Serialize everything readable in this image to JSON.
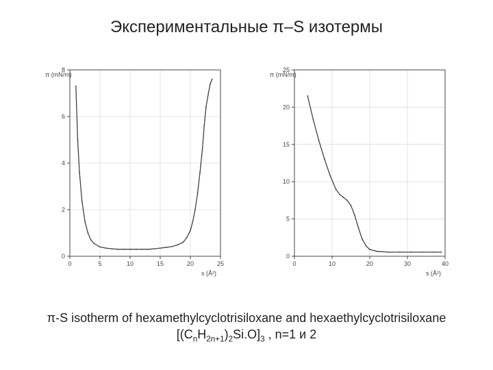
{
  "title": "Экспериментальные π–S изотермы",
  "caption_line1": "π-S isotherm of hexamethylcyclotrisiloxane and hexaethylcyclotrisiloxane",
  "caption_line2_prefix": "[(C",
  "caption_sub_n": "n",
  "caption_H": "H",
  "caption_sub_2n1": "2n+1",
  "caption_close1": ")",
  "caption_sub_2": "2",
  "caption_close2": "Si.O]",
  "caption_sub_3": "3",
  "caption_tail": " , n=1 и 2",
  "chart_left": {
    "type": "line",
    "background_color": "#ffffff",
    "grid_color": "#d0d0d0",
    "axis_color": "#444444",
    "line_color": "#404040",
    "line_width": 1.3,
    "xlim": [
      0,
      25
    ],
    "ylim": [
      0,
      8
    ],
    "xticks": [
      0,
      5,
      10,
      15,
      20,
      25
    ],
    "yticks": [
      0,
      2,
      4,
      6,
      8
    ],
    "xlabel": "s (Å²)",
    "ylabel": "π (mN/m)",
    "label_fontsize": 9,
    "tick_fontsize": 9,
    "data_x": [
      1.0,
      1.3,
      1.6,
      2.0,
      2.5,
      3.0,
      3.5,
      4.0,
      5.0,
      6.0,
      7.0,
      8.0,
      9.0,
      10.0,
      11.0,
      12.0,
      13.0,
      14.0,
      15.0,
      16.0,
      17.0,
      18.0,
      18.8,
      19.4,
      20.0,
      20.4,
      20.8,
      21.2,
      21.6,
      22.0,
      22.3,
      22.6,
      23.0,
      23.3,
      23.6
    ],
    "data_y": [
      7.3,
      5.0,
      3.6,
      2.4,
      1.5,
      1.0,
      0.7,
      0.55,
      0.4,
      0.35,
      0.32,
      0.3,
      0.3,
      0.3,
      0.3,
      0.3,
      0.3,
      0.32,
      0.35,
      0.38,
      0.42,
      0.5,
      0.6,
      0.8,
      1.1,
      1.5,
      2.0,
      2.7,
      3.6,
      4.6,
      5.6,
      6.4,
      7.0,
      7.4,
      7.6
    ]
  },
  "chart_right": {
    "type": "line",
    "background_color": "#ffffff",
    "grid_color": "#d0d0d0",
    "axis_color": "#444444",
    "line_color": "#404040",
    "line_width": 1.3,
    "xlim": [
      0,
      40
    ],
    "ylim": [
      0,
      25
    ],
    "xticks": [
      0,
      10,
      20,
      30,
      40
    ],
    "yticks": [
      0,
      5,
      10,
      15,
      20,
      25
    ],
    "xlabel": "s (Å²)",
    "ylabel": "π (mN/m)",
    "label_fontsize": 9,
    "tick_fontsize": 9,
    "data_x": [
      3.5,
      5.0,
      6.5,
      8.0,
      9.5,
      11.0,
      12.0,
      13.0,
      14.0,
      15.0,
      16.0,
      17.0,
      18.0,
      19.0,
      20.0,
      22.0,
      25.0,
      28.0,
      31.0,
      34.0,
      37.0,
      39.0
    ],
    "data_y": [
      21.5,
      18.3,
      15.5,
      13.0,
      10.8,
      9.0,
      8.3,
      7.9,
      7.5,
      6.8,
      5.5,
      3.8,
      2.3,
      1.4,
      0.9,
      0.65,
      0.55,
      0.55,
      0.55,
      0.55,
      0.55,
      0.55
    ]
  }
}
